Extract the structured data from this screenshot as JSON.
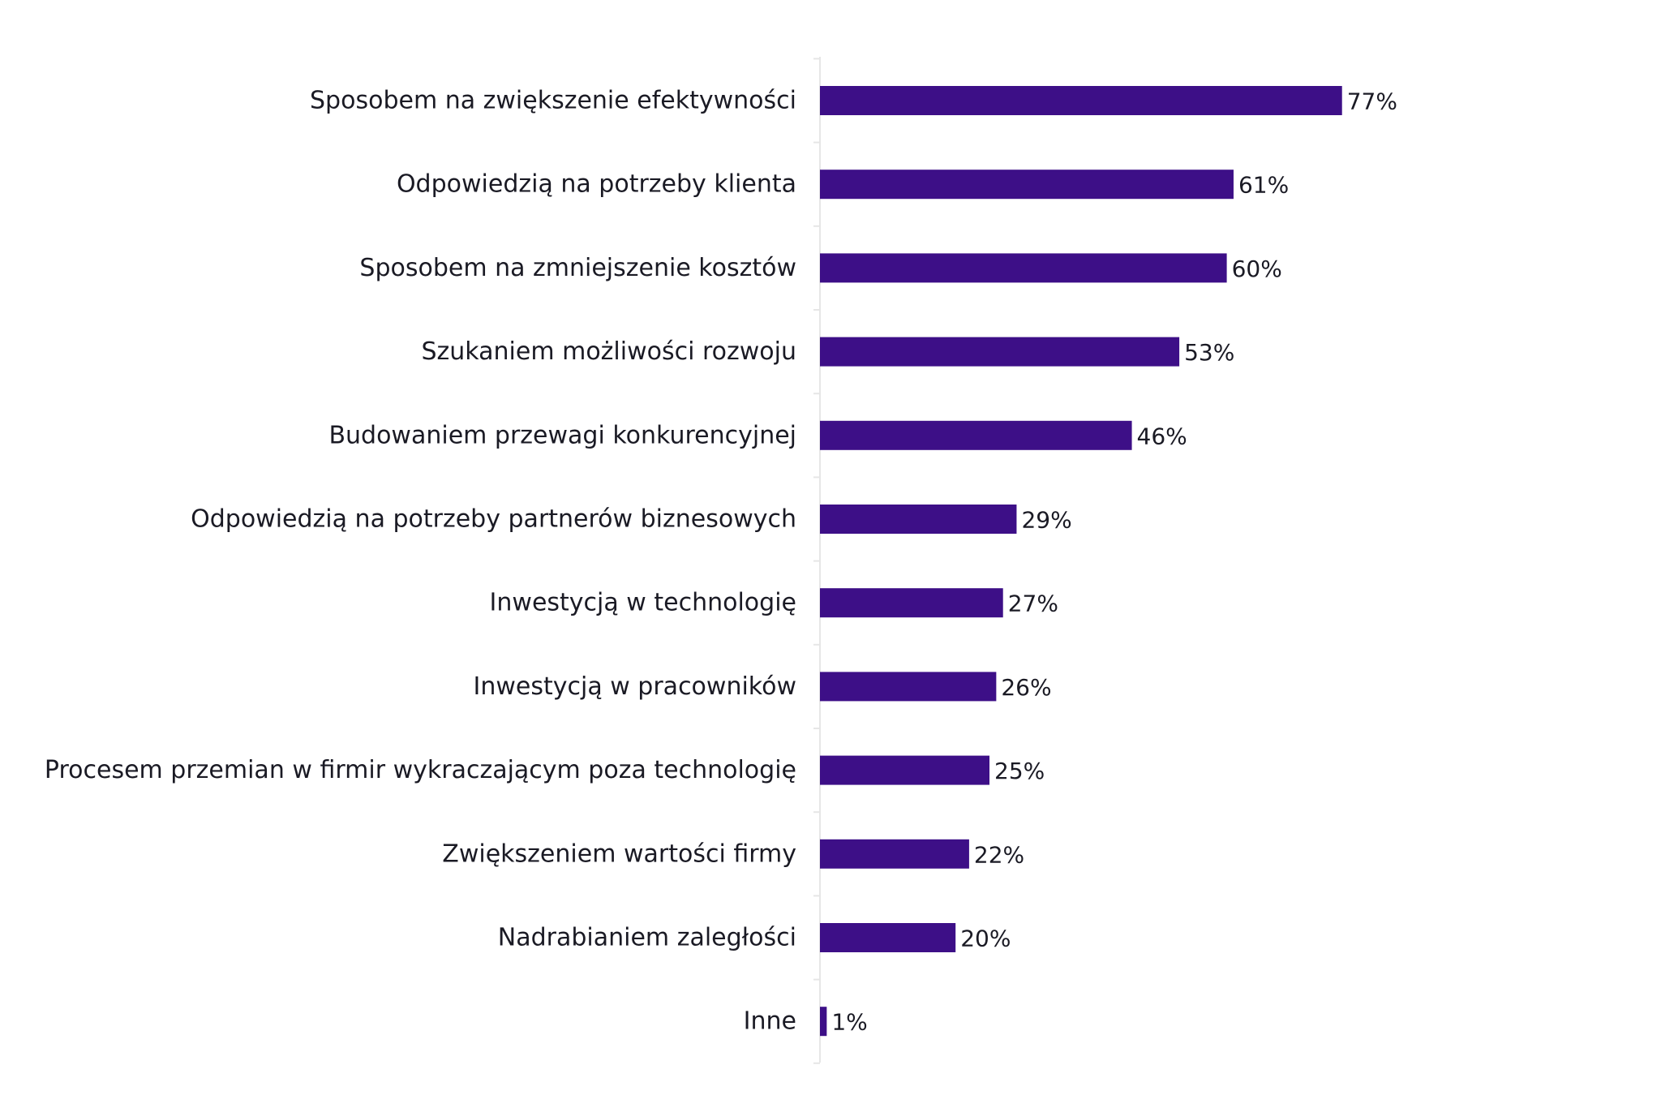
{
  "chart_data": {
    "type": "bar",
    "orientation": "horizontal",
    "title": "",
    "xlabel": "",
    "ylabel": "",
    "grid": false,
    "legend": "none",
    "bar_color": "#3d0f87",
    "axis_color": "#e6e6e6",
    "xlim": [
      0,
      100
    ],
    "categories": [
      "Sposobem na zwiększenie efektywności",
      "Odpowiedzią na potrzeby klienta",
      "Sposobem na zmniejszenie kosztów",
      "Szukaniem możliwości rozwoju",
      "Budowaniem przewagi konkurencyjnej",
      "Odpowiedzią na potrzeby partnerów biznesowych",
      "Inwestycją w technologię",
      "Inwestycją w pracowników",
      "Procesem przemian w firmir wykraczającym poza technologię",
      "Zwiększeniem wartości firmy",
      "Nadrabianiem zaległości",
      "Inne"
    ],
    "values": [
      77,
      61,
      60,
      53,
      46,
      29,
      27,
      26,
      25,
      22,
      20,
      1
    ],
    "value_labels": [
      "77%",
      "61%",
      "60%",
      "53%",
      "46%",
      "29%",
      "27%",
      "26%",
      "25%",
      "22%",
      "20%",
      "1%"
    ]
  }
}
